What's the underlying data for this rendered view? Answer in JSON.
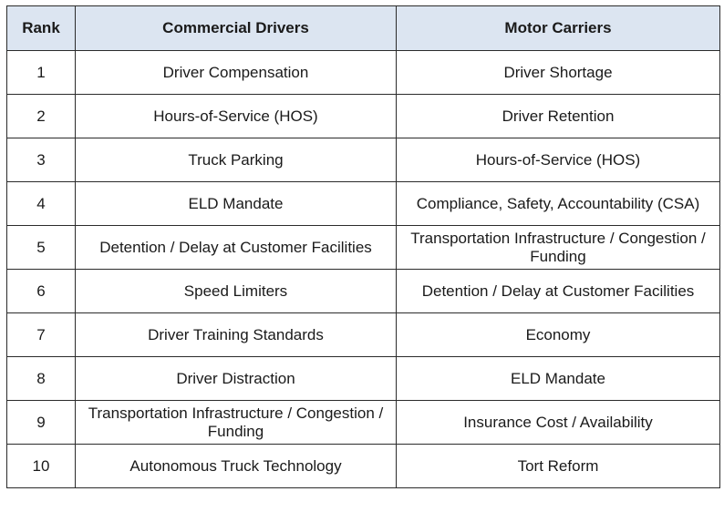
{
  "table": {
    "headers": {
      "rank": "Rank",
      "drivers": "Commercial Drivers",
      "carriers": "Motor Carriers"
    },
    "header_color": "#dce5f1",
    "rows": [
      {
        "rank": "1",
        "drivers": "Driver Compensation",
        "carriers": "Driver Shortage"
      },
      {
        "rank": "2",
        "drivers": "Hours-of-Service (HOS)",
        "carriers": "Driver Retention"
      },
      {
        "rank": "3",
        "drivers": "Truck Parking",
        "carriers": "Hours-of-Service (HOS)"
      },
      {
        "rank": "4",
        "drivers": "ELD Mandate",
        "carriers": "Compliance, Safety, Accountability (CSA)"
      },
      {
        "rank": "5",
        "drivers": "Detention / Delay at Customer Facilities",
        "carriers": "Transportation Infrastructure / Congestion / Funding"
      },
      {
        "rank": "6",
        "drivers": "Speed Limiters",
        "carriers": "Detention / Delay at Customer Facilities"
      },
      {
        "rank": "7",
        "drivers": "Driver Training Standards",
        "carriers": "Economy"
      },
      {
        "rank": "8",
        "drivers": "Driver Distraction",
        "carriers": "ELD Mandate"
      },
      {
        "rank": "9",
        "drivers": "Transportation Infrastructure / Congestion / Funding",
        "carriers": "Insurance Cost / Availability"
      },
      {
        "rank": "10",
        "drivers": "Autonomous Truck Technology",
        "carriers": "Tort Reform"
      }
    ]
  }
}
